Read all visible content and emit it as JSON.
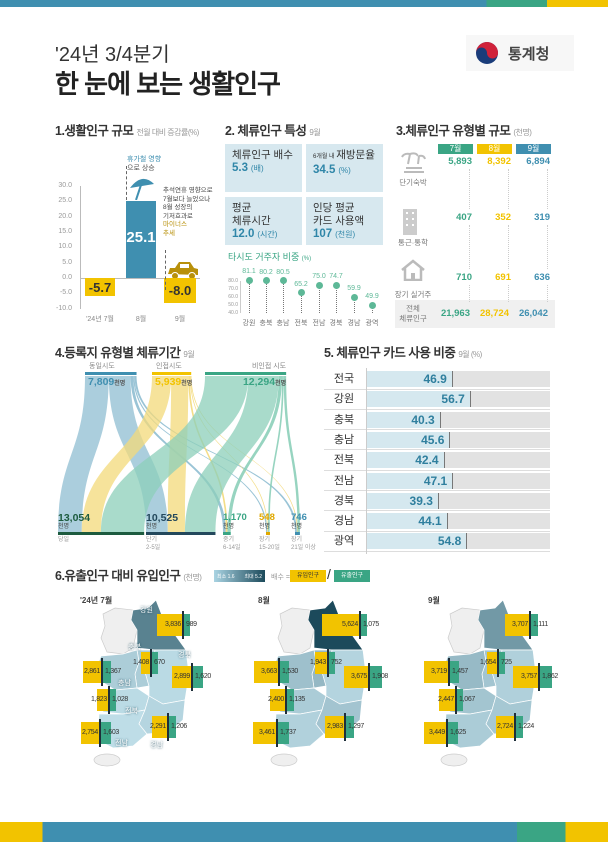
{
  "header": {
    "subtitle": "'24년 3/4분기",
    "title": "한 눈에 보는 생활인구",
    "logo_text": "통계청"
  },
  "colors": {
    "blue": "#3f8fb0",
    "green": "#3aa584",
    "yellow": "#f2c300",
    "dark": "#1c4a5b",
    "box": "#d7e8ef"
  },
  "s1": {
    "title": "1.생활인구 규모",
    "unit": "전월 대비 증감률(%)",
    "annot_a": "휴가철 영향",
    "annot_b": "으로 상승",
    "note": [
      "추석연휴 영향으로",
      "7월보다 늘었으나",
      "8월 성장의",
      "기저효과로"
    ],
    "note_hl": [
      "마이너스",
      "추세"
    ],
    "icons": [
      "umbrella-icon",
      "car-icon"
    ]
  },
  "s2": {
    "title": "2. 체류인구 특성",
    "period": "9월",
    "boxes": [
      {
        "small": "",
        "label": [
          "체류인구 배수"
        ],
        "value": "5.3",
        "unit": "(배)"
      },
      {
        "small": "6개월 내",
        "label": [
          "재방문율"
        ],
        "value": "34.5",
        "unit": "(%)"
      },
      {
        "small": "",
        "label": [
          "평균",
          "체류시간"
        ],
        "value": "12.0",
        "unit": "(시간)"
      },
      {
        "small": "",
        "label": [
          "인당 평균",
          "카드 사용액"
        ],
        "value": "107",
        "unit": "(천원)"
      }
    ],
    "lolli_title": "타시도 거주자 비중",
    "lolli_unit": "(%)"
  },
  "s3": {
    "title": "3.체류인구 유형별 규모",
    "unit": "(천명)",
    "months": [
      "7월",
      "8월",
      "9월"
    ],
    "rows": [
      {
        "label": "단기숙박",
        "icon": "beach-icon",
        "values": [
          "5,893",
          "8,392",
          "6,894"
        ]
      },
      {
        "label": "통근·통학",
        "icon": "building-icon",
        "values": [
          "407",
          "352",
          "319"
        ]
      },
      {
        "label": "장기 실거주",
        "icon": "house-icon",
        "values": [
          "710",
          "691",
          "636"
        ]
      }
    ],
    "total": {
      "label": [
        "전체",
        "체류인구"
      ],
      "values": [
        "21,963",
        "28,724",
        "26,042"
      ]
    }
  },
  "s4": {
    "title": "4.등록지 유형별 체류기간",
    "period": "9월",
    "unit": "천명",
    "sources": [
      {
        "label": "동일시도",
        "value": "7,809",
        "n": 7809
      },
      {
        "label": "인접시도",
        "value": "5,939",
        "n": 5939
      },
      {
        "label": "비인접 시도",
        "value": "12,294",
        "n": 12294
      }
    ],
    "targets": [
      {
        "label": [
          "당일"
        ],
        "value": "13,054",
        "n": 13054
      },
      {
        "label": [
          "단기",
          "2-5일"
        ],
        "value": "10,525",
        "n": 10525
      },
      {
        "label": [
          "중기",
          "6-14일"
        ],
        "value": "1,170",
        "n": 1170
      },
      {
        "label": [
          "장기",
          "15-20일"
        ],
        "value": "548",
        "n": 548
      },
      {
        "label": [
          "장기",
          "21일 이상"
        ],
        "value": "746",
        "n": 746
      }
    ],
    "flows_estimated": [
      [
        3600,
        3300,
        420,
        190,
        299
      ],
      [
        2900,
        2600,
        250,
        110,
        79
      ],
      [
        6554,
        4625,
        500,
        248,
        368
      ]
    ]
  },
  "s5": {
    "title": "5. 체류인구 카드 사용 비중",
    "unit": "9월 (%)"
  },
  "s6": {
    "title": "6.유출인구 대비 유입인구",
    "unit": "(천명)",
    "legend_min": "최소 1.6",
    "legend_max": "최대 5.2",
    "ratio_label": "배수 =",
    "inflow_label": "유입인구",
    "outflow_label": "유출인구",
    "region_labels": [
      "강원",
      "충북",
      "충남",
      "경북",
      "전북",
      "전남",
      "경남"
    ],
    "maps": [
      {
        "month": "'24년 7월",
        "in": [
          "3,836",
          "1,408",
          "2,861",
          "2,899",
          "1,823",
          "2,754",
          "2,291"
        ],
        "out": [
          "989",
          "670",
          "1,367",
          "1,620",
          "1,028",
          "1,603",
          "1,206"
        ]
      },
      {
        "month": "8월",
        "in": [
          "5,624",
          "1,943",
          "3,663",
          "3,675",
          "2,400",
          "3,461",
          "2,983"
        ],
        "out": [
          "1,075",
          "752",
          "1,530",
          "1,908",
          "1,135",
          "1,737",
          "1,297"
        ]
      },
      {
        "month": "9월",
        "in": [
          "3,707",
          "1,654",
          "3,719",
          "3,757",
          "2,447",
          "3,449",
          "2,724"
        ],
        "out": [
          "1,111",
          "725",
          "1,457",
          "1,862",
          "1,067",
          "1,625",
          "1,224"
        ]
      }
    ]
  },
  "chart_data": [
    {
      "type": "bar",
      "title": "1.생활인구 규모",
      "ylabel": "전월 대비 증감률(%)",
      "categories": [
        "'24년 7월",
        "8월",
        "9월"
      ],
      "values": [
        -5.7,
        25.1,
        -8.0
      ],
      "labels": [
        "-5.7",
        "25.1",
        "-8.0"
      ],
      "ylim": [
        -10,
        30
      ],
      "yticks": [
        "30.0",
        "25.0",
        "20.0",
        "15.0",
        "10.0",
        "5.0",
        "0.0",
        "-5.0",
        "-10.0"
      ],
      "bar_colors": [
        "#f2c300",
        "#3f8fb0",
        "#f2c300"
      ],
      "grid": false
    },
    {
      "type": "scatter",
      "title": "타시도 거주자 비중 (%)",
      "categories": [
        "강원",
        "충북",
        "충남",
        "전북",
        "전남",
        "경북",
        "경남",
        "광역"
      ],
      "values": [
        81.1,
        80.2,
        80.5,
        65.2,
        75.0,
        74.7,
        59.9,
        49.9
      ],
      "labels": [
        "81.1",
        "80.2",
        "80.5",
        "65.2",
        "75.0",
        "74.7",
        "59.9",
        "49.9"
      ],
      "ylim": [
        40,
        80
      ],
      "yticks": [
        "80.0",
        "70.0",
        "60.0",
        "50.0",
        "40.0"
      ],
      "color": "#5db897"
    },
    {
      "type": "bar",
      "orientation": "horizontal",
      "title": "5. 체류인구 카드 사용 비중 9월 (%)",
      "categories": [
        "전국",
        "강원",
        "충북",
        "충남",
        "전북",
        "전남",
        "경북",
        "경남",
        "광역"
      ],
      "values": [
        46.9,
        56.7,
        40.3,
        45.6,
        42.4,
        47.1,
        39.3,
        44.1,
        54.8
      ],
      "labels": [
        "46.9",
        "56.7",
        "40.3",
        "45.6",
        "42.4",
        "47.1",
        "39.3",
        "44.1",
        "54.8"
      ],
      "xlim": [
        0,
        100
      ]
    }
  ]
}
